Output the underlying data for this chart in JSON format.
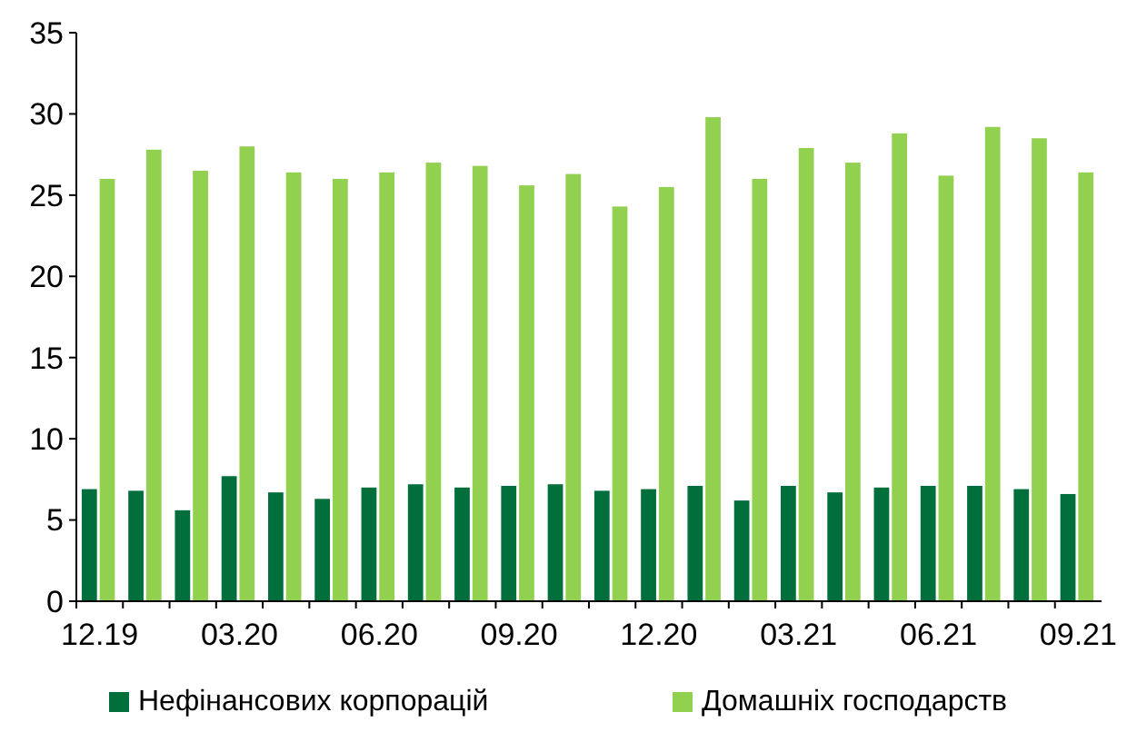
{
  "chart_data": {
    "type": "bar",
    "categories": [
      "12.19",
      null,
      null,
      "03.20",
      null,
      null,
      "06.20",
      null,
      null,
      "09.20",
      null,
      null,
      "12.20",
      null,
      null,
      "03.21",
      null,
      null,
      "06.21",
      null,
      null,
      "09.21"
    ],
    "series": [
      {
        "name": "Нефінансових корпорацій",
        "color": "#006f3c",
        "values": [
          6.9,
          6.8,
          5.6,
          7.7,
          6.7,
          6.3,
          7.0,
          7.2,
          7.0,
          7.1,
          7.2,
          6.8,
          6.9,
          7.1,
          6.2,
          7.1,
          6.7,
          7.0,
          7.1,
          7.1,
          6.9,
          6.6
        ]
      },
      {
        "name": "Домашніх господарств",
        "color": "#92d050",
        "values": [
          26.0,
          27.8,
          26.5,
          28.0,
          26.4,
          26.0,
          26.4,
          27.0,
          26.8,
          25.6,
          26.3,
          24.3,
          25.5,
          29.8,
          26.0,
          27.9,
          27.0,
          28.8,
          26.2,
          29.2,
          28.5,
          26.4
        ]
      }
    ],
    "ylim": [
      0,
      35
    ],
    "yticks": [
      0,
      5,
      10,
      15,
      20,
      25,
      30,
      35
    ],
    "grid": false,
    "legend": "bottom"
  }
}
